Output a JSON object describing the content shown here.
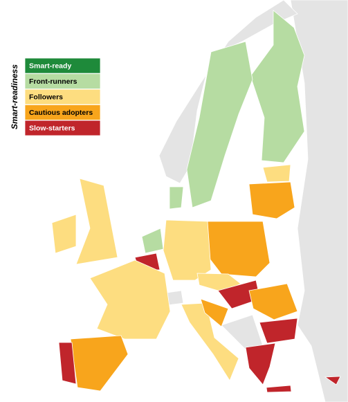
{
  "legend": {
    "title": "Smart-readiness",
    "items": [
      {
        "label": "Smart-ready",
        "color": "#1e8a3a"
      },
      {
        "label": "Front-runners",
        "color": "#b6dca2"
      },
      {
        "label": "Followers",
        "color": "#fddd80"
      },
      {
        "label": "Cautious adopters",
        "color": "#f8a51c"
      },
      {
        "label": "Slow-starters",
        "color": "#c0252b"
      }
    ]
  }
}
